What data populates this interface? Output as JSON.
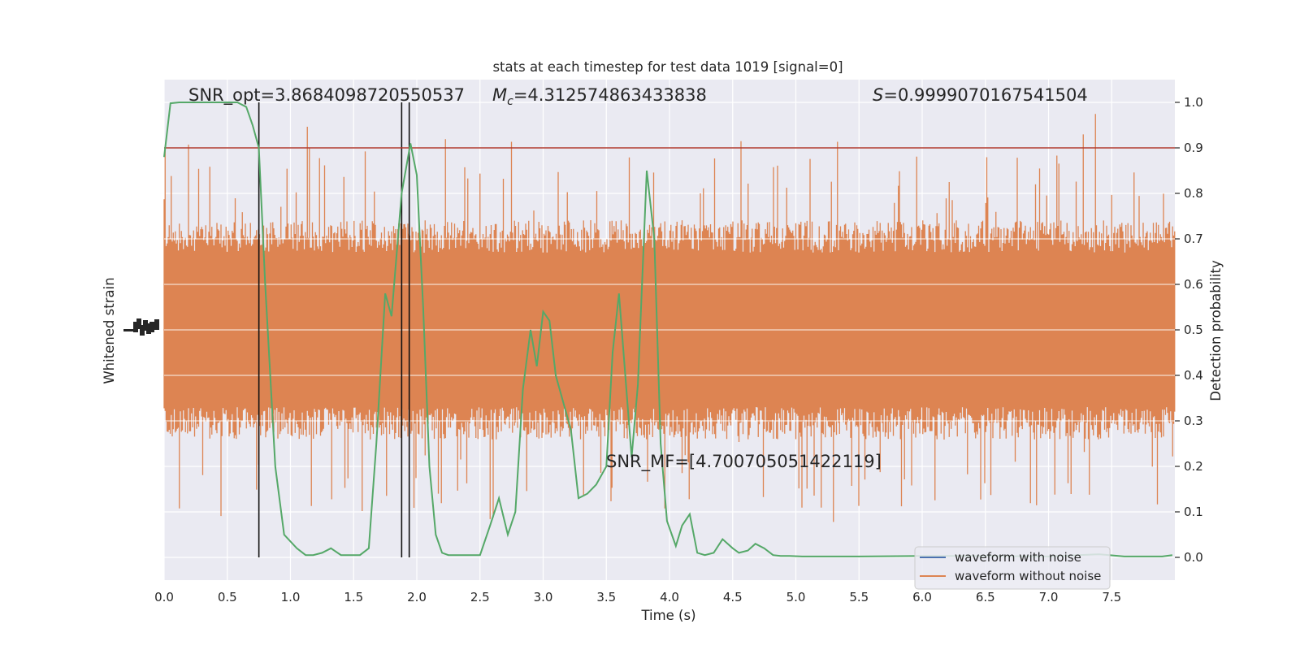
{
  "chart_data": {
    "type": "line",
    "title": "stats at each timestep for test data 1019 [signal=0]",
    "xlabel": "Time (s)",
    "ylabel_left": "Whitened strain",
    "ylabel_right": "Detection probability",
    "xlim": [
      0.0,
      8.0
    ],
    "ylim_right": [
      -0.05,
      1.05
    ],
    "x_ticks": [
      0.0,
      0.5,
      1.0,
      1.5,
      2.0,
      2.5,
      3.0,
      3.5,
      4.0,
      4.5,
      5.0,
      5.5,
      6.0,
      6.5,
      7.0,
      7.5
    ],
    "x_tick_labels": [
      "0.0",
      "0.5",
      "1.0",
      "1.5",
      "2.0",
      "2.5",
      "3.0",
      "3.5",
      "4.0",
      "4.5",
      "5.0",
      "5.5",
      "6.0",
      "6.5",
      "7.0",
      "7.5"
    ],
    "y_right_ticks": [
      0.0,
      0.1,
      0.2,
      0.3,
      0.4,
      0.5,
      0.6,
      0.7,
      0.8,
      0.9,
      1.0
    ],
    "y_right_tick_labels": [
      "0.0",
      "0.1",
      "0.2",
      "0.3",
      "0.4",
      "0.5",
      "0.6",
      "0.7",
      "0.8",
      "0.9",
      "1.0"
    ],
    "grid": true,
    "legend_position": "lower-right",
    "annotations": {
      "snr_opt": "SNR_opt=3.8684098720550537",
      "mc_symbol": "M",
      "mc_sub": "c",
      "mc_value": "=4.312574863433838",
      "s_symbol": "S",
      "s_value": "=0.9999070167541504",
      "snr_mf": "SNR_MF=[4.700705051422119]"
    },
    "threshold": {
      "value": 0.9,
      "color": "#b03a2e"
    },
    "vertical_lines": [
      0.75,
      1.88,
      1.94
    ],
    "series": [
      {
        "name": "waveform with noise",
        "color": "#4c72b0",
        "style": "noise-band",
        "level": 0.5
      },
      {
        "name": "waveform without noise",
        "color": "#dd8452",
        "style": "noise-band",
        "level": 0.5
      },
      {
        "color": "#55a868",
        "x": [
          0.0,
          0.05,
          0.12,
          0.2,
          0.3,
          0.4,
          0.5,
          0.58,
          0.65,
          0.7,
          0.75,
          0.8,
          0.88,
          0.95,
          1.05,
          1.12,
          1.18,
          1.25,
          1.32,
          1.4,
          1.48,
          1.55,
          1.62,
          1.68,
          1.75,
          1.8,
          1.88,
          1.95,
          2.0,
          2.05,
          2.1,
          2.15,
          2.2,
          2.25,
          2.32,
          2.4,
          2.5,
          2.58,
          2.65,
          2.72,
          2.78,
          2.84,
          2.9,
          2.95,
          3.0,
          3.05,
          3.1,
          3.15,
          3.22,
          3.28,
          3.35,
          3.42,
          3.5,
          3.55,
          3.6,
          3.65,
          3.7,
          3.75,
          3.82,
          3.88,
          3.93,
          3.98,
          4.05,
          4.1,
          4.16,
          4.22,
          4.28,
          4.35,
          4.42,
          4.5,
          4.55,
          4.62,
          4.68,
          4.75,
          4.82,
          4.88,
          4.95,
          5.05,
          5.2,
          5.5,
          6.0,
          6.5,
          7.0,
          7.4,
          7.6,
          7.9,
          7.98
        ],
        "y": [
          0.88,
          0.998,
          1.0,
          1.0,
          1.0,
          1.0,
          1.0,
          1.0,
          0.99,
          0.95,
          0.9,
          0.6,
          0.2,
          0.05,
          0.02,
          0.005,
          0.005,
          0.01,
          0.02,
          0.005,
          0.005,
          0.005,
          0.02,
          0.25,
          0.58,
          0.53,
          0.8,
          0.91,
          0.84,
          0.55,
          0.2,
          0.05,
          0.01,
          0.005,
          0.005,
          0.005,
          0.005,
          0.07,
          0.13,
          0.05,
          0.1,
          0.37,
          0.5,
          0.42,
          0.54,
          0.52,
          0.4,
          0.35,
          0.28,
          0.13,
          0.14,
          0.16,
          0.2,
          0.45,
          0.58,
          0.4,
          0.22,
          0.38,
          0.85,
          0.7,
          0.25,
          0.08,
          0.025,
          0.07,
          0.095,
          0.01,
          0.005,
          0.01,
          0.04,
          0.02,
          0.01,
          0.015,
          0.03,
          0.02,
          0.005,
          0.003,
          0.003,
          0.002,
          0.002,
          0.002,
          0.003,
          0.003,
          0.002,
          0.007,
          0.002,
          0.002,
          0.005
        ]
      }
    ]
  }
}
